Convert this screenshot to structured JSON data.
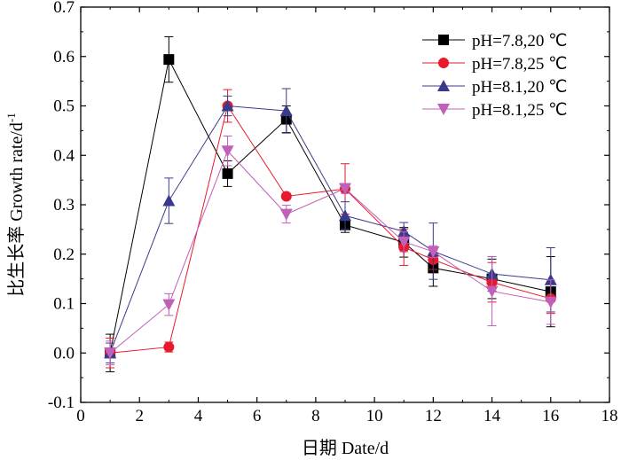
{
  "chart_data": {
    "type": "line",
    "xlabel": "日期 Date/d",
    "ylabel": "比生长率 Growth rate/d",
    "ylabel_sup": "-1",
    "xlim": [
      0,
      18
    ],
    "ylim": [
      -0.1,
      0.7
    ],
    "x_ticks": [
      "0",
      "2",
      "4",
      "6",
      "8",
      "10",
      "12",
      "14",
      "16",
      "18"
    ],
    "y_ticks": [
      "-0.1",
      "0.0",
      "0.1",
      "0.2",
      "0.3",
      "0.4",
      "0.5",
      "0.6",
      "0.7"
    ],
    "legend_position": "top-right",
    "series": [
      {
        "name": "pH=7.8,20 ℃",
        "color": "#000000",
        "marker": "square",
        "x": [
          1,
          3,
          5,
          7,
          9,
          11,
          12,
          14,
          16
        ],
        "y": [
          0.0,
          0.594,
          0.363,
          0.473,
          0.259,
          0.224,
          0.172,
          0.15,
          0.124
        ],
        "err": [
          0.038,
          0.046,
          0.026,
          0.027,
          0.015,
          0.03,
          0.037,
          0.04,
          0.071
        ]
      },
      {
        "name": "pH=7.8,25 ℃",
        "color": "#e8192c",
        "marker": "circle",
        "x": [
          1,
          3,
          5,
          7,
          9,
          11,
          12,
          14,
          16
        ],
        "y": [
          0.0,
          0.012,
          0.5,
          0.317,
          0.332,
          0.214,
          0.189,
          0.143,
          0.11
        ],
        "err": [
          0.03,
          0.01,
          0.033,
          0.0,
          0.051,
          0.037,
          0.02,
          0.04,
          0.03
        ]
      },
      {
        "name": "pH=8.1,20 ℃",
        "color": "#3a3a8c",
        "marker": "triangle-up",
        "x": [
          1,
          3,
          5,
          7,
          9,
          11,
          12,
          14,
          16
        ],
        "y": [
          0.0,
          0.308,
          0.5,
          0.49,
          0.278,
          0.246,
          0.206,
          0.16,
          0.148
        ],
        "err": [
          0.02,
          0.046,
          0.02,
          0.045,
          0.028,
          0.018,
          0.057,
          0.035,
          0.065
        ]
      },
      {
        "name": "pH=8.1,25 ℃",
        "color": "#c060b8",
        "marker": "triangle-down",
        "x": [
          1,
          3,
          5,
          7,
          9,
          11,
          12,
          14,
          16
        ],
        "y": [
          0.0,
          0.098,
          0.409,
          0.281,
          0.333,
          0.225,
          0.205,
          0.125,
          0.103
        ],
        "err": [
          0.024,
          0.022,
          0.03,
          0.018,
          0.01,
          0.02,
          0.012,
          0.07,
          0.045
        ]
      }
    ]
  }
}
